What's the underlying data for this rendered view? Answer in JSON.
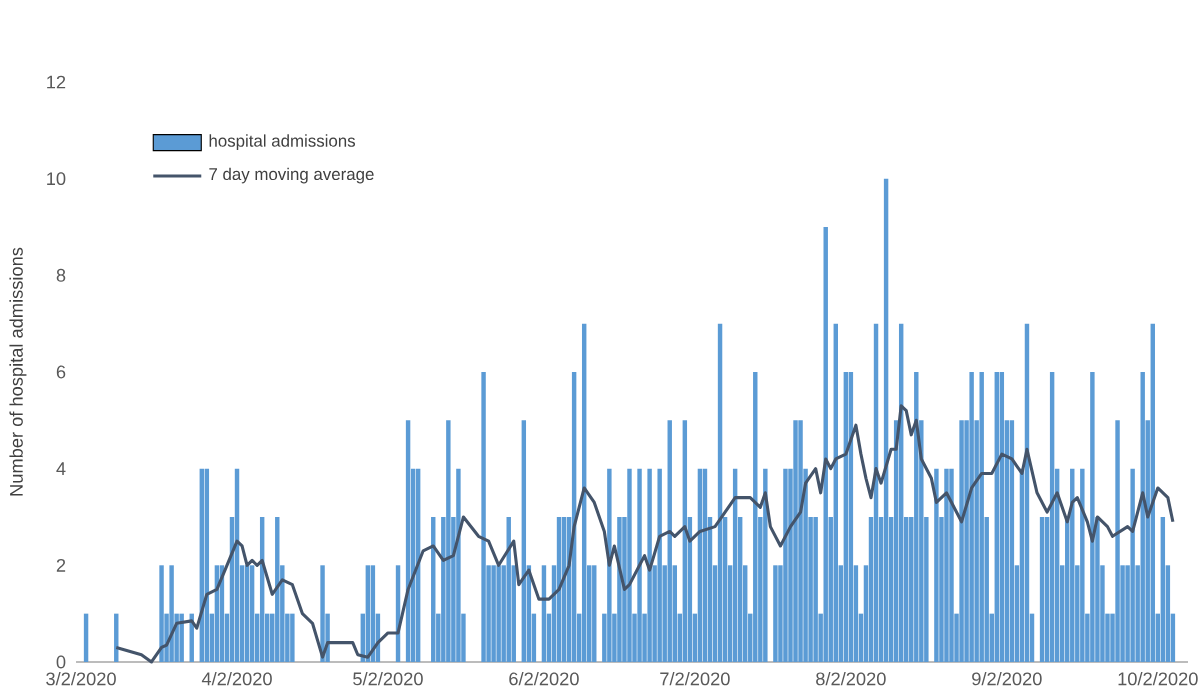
{
  "chart_data": {
    "type": "bar",
    "ylabel": "Number of hospital admissions",
    "xlim": [
      "2020-03-01",
      "2020-10-08"
    ],
    "xticks": [
      {
        "value": "2020-03-02",
        "label": "3/2/2020"
      },
      {
        "value": "2020-04-02",
        "label": "4/2/2020"
      },
      {
        "value": "2020-05-02",
        "label": "5/2/2020"
      },
      {
        "value": "2020-06-02",
        "label": "6/2/2020"
      },
      {
        "value": "2020-07-02",
        "label": "7/2/2020"
      },
      {
        "value": "2020-08-02",
        "label": "8/2/2020"
      },
      {
        "value": "2020-09-02",
        "label": "9/2/2020"
      },
      {
        "value": "2020-10-02",
        "label": "10/2/2020"
      }
    ],
    "ylim": [
      0,
      12
    ],
    "yticks": [
      0,
      2,
      4,
      6,
      8,
      10,
      12
    ],
    "legend": "top left",
    "series": [
      {
        "name": "hospital admissions",
        "color": "#5b9bd5",
        "x": [
          "2020-03-02",
          "2020-03-03",
          "2020-03-04",
          "2020-03-05",
          "2020-03-06",
          "2020-03-07",
          "2020-03-08",
          "2020-03-09",
          "2020-03-10",
          "2020-03-11",
          "2020-03-12",
          "2020-03-13",
          "2020-03-14",
          "2020-03-15",
          "2020-03-16",
          "2020-03-17",
          "2020-03-18",
          "2020-03-19",
          "2020-03-20",
          "2020-03-21",
          "2020-03-22",
          "2020-03-23",
          "2020-03-24",
          "2020-03-25",
          "2020-03-26",
          "2020-03-27",
          "2020-03-28",
          "2020-03-29",
          "2020-03-30",
          "2020-03-31",
          "2020-04-01",
          "2020-04-02",
          "2020-04-03",
          "2020-04-04",
          "2020-04-05",
          "2020-04-06",
          "2020-04-07",
          "2020-04-08",
          "2020-04-09",
          "2020-04-10",
          "2020-04-11",
          "2020-04-12",
          "2020-04-13",
          "2020-04-14",
          "2020-04-15",
          "2020-04-16",
          "2020-04-17",
          "2020-04-18",
          "2020-04-19",
          "2020-04-20",
          "2020-04-21",
          "2020-04-22",
          "2020-04-23",
          "2020-04-24",
          "2020-04-25",
          "2020-04-26",
          "2020-04-27",
          "2020-04-28",
          "2020-04-29",
          "2020-04-30",
          "2020-05-01",
          "2020-05-02",
          "2020-05-03",
          "2020-05-04",
          "2020-05-05",
          "2020-05-06",
          "2020-05-07",
          "2020-05-08",
          "2020-05-09",
          "2020-05-10",
          "2020-05-11",
          "2020-05-12",
          "2020-05-13",
          "2020-05-14",
          "2020-05-15",
          "2020-05-16",
          "2020-05-17",
          "2020-05-18",
          "2020-05-19",
          "2020-05-20",
          "2020-05-21",
          "2020-05-22",
          "2020-05-23",
          "2020-05-24",
          "2020-05-25",
          "2020-05-26",
          "2020-05-27",
          "2020-05-28",
          "2020-05-29",
          "2020-05-30",
          "2020-05-31",
          "2020-06-01",
          "2020-06-02",
          "2020-06-03",
          "2020-06-04",
          "2020-06-05",
          "2020-06-06",
          "2020-06-07",
          "2020-06-08",
          "2020-06-09",
          "2020-06-10",
          "2020-06-11",
          "2020-06-12",
          "2020-06-13",
          "2020-06-14",
          "2020-06-15",
          "2020-06-16",
          "2020-06-17",
          "2020-06-18",
          "2020-06-19",
          "2020-06-20",
          "2020-06-21",
          "2020-06-22",
          "2020-06-23",
          "2020-06-24",
          "2020-06-25",
          "2020-06-26",
          "2020-06-27",
          "2020-06-28",
          "2020-06-29",
          "2020-06-30",
          "2020-07-01",
          "2020-07-02",
          "2020-07-03",
          "2020-07-04",
          "2020-07-05",
          "2020-07-06",
          "2020-07-07",
          "2020-07-08",
          "2020-07-09",
          "2020-07-10",
          "2020-07-11",
          "2020-07-12",
          "2020-07-13",
          "2020-07-14",
          "2020-07-15",
          "2020-07-16",
          "2020-07-17",
          "2020-07-18",
          "2020-07-19",
          "2020-07-20",
          "2020-07-21",
          "2020-07-22",
          "2020-07-23",
          "2020-07-24",
          "2020-07-25",
          "2020-07-26",
          "2020-07-27",
          "2020-07-28",
          "2020-07-29",
          "2020-07-30",
          "2020-07-31",
          "2020-08-01",
          "2020-08-02",
          "2020-08-03",
          "2020-08-04",
          "2020-08-05",
          "2020-08-06",
          "2020-08-07",
          "2020-08-08",
          "2020-08-09",
          "2020-08-10",
          "2020-08-11",
          "2020-08-12",
          "2020-08-13",
          "2020-08-14",
          "2020-08-15",
          "2020-08-16",
          "2020-08-17",
          "2020-08-18",
          "2020-08-19",
          "2020-08-20",
          "2020-08-21",
          "2020-08-22",
          "2020-08-23",
          "2020-08-24",
          "2020-08-25",
          "2020-08-26",
          "2020-08-27",
          "2020-08-28",
          "2020-08-29",
          "2020-08-30",
          "2020-08-31",
          "2020-09-01",
          "2020-09-02",
          "2020-09-03",
          "2020-09-04",
          "2020-09-05",
          "2020-09-06",
          "2020-09-07",
          "2020-09-08",
          "2020-09-09",
          "2020-09-10",
          "2020-09-11",
          "2020-09-12",
          "2020-09-13",
          "2020-09-14",
          "2020-09-15",
          "2020-09-16",
          "2020-09-17",
          "2020-09-18",
          "2020-09-19",
          "2020-09-20",
          "2020-09-21",
          "2020-09-22",
          "2020-09-23",
          "2020-09-24",
          "2020-09-25",
          "2020-09-26",
          "2020-09-27",
          "2020-09-28",
          "2020-09-29",
          "2020-09-30",
          "2020-10-01",
          "2020-10-02",
          "2020-10-03",
          "2020-10-04",
          "2020-10-05"
        ],
        "values": [
          0,
          1,
          0,
          0,
          0,
          0,
          0,
          1,
          0,
          0,
          0,
          0,
          0,
          0,
          0,
          0,
          2,
          1,
          2,
          1,
          1,
          0,
          1,
          0,
          4,
          4,
          1,
          2,
          2,
          1,
          3,
          4,
          2,
          2,
          2,
          1,
          3,
          1,
          1,
          3,
          2,
          1,
          1,
          0,
          0,
          0,
          0,
          0,
          2,
          1,
          0,
          0,
          0,
          0,
          0,
          0,
          1,
          2,
          2,
          1,
          0,
          0,
          0,
          2,
          0,
          5,
          4,
          4,
          0,
          0,
          3,
          1,
          3,
          5,
          3,
          4,
          1,
          0,
          0,
          0,
          6,
          2,
          2,
          2,
          2,
          3,
          2,
          0,
          5,
          2,
          1,
          0,
          2,
          1,
          2,
          3,
          3,
          3,
          6,
          1,
          7,
          2,
          2,
          0,
          1,
          4,
          1,
          3,
          3,
          4,
          1,
          4,
          1,
          4,
          2,
          4,
          2,
          5,
          2,
          1,
          5,
          3,
          1,
          4,
          4,
          3,
          2,
          7,
          3,
          2,
          4,
          3,
          2,
          1,
          6,
          3,
          4,
          0,
          2,
          2,
          4,
          4,
          5,
          5,
          4,
          3,
          3,
          1,
          9,
          3,
          7,
          2,
          6,
          6,
          2,
          1,
          2,
          3,
          7,
          3,
          10,
          3,
          5,
          7,
          3,
          3,
          6,
          5,
          3,
          0,
          4,
          3,
          4,
          4,
          1,
          5,
          5,
          6,
          5,
          6,
          3,
          1,
          6,
          6,
          5,
          5,
          2,
          4,
          7,
          1,
          0,
          3,
          3,
          6,
          4,
          2,
          3,
          4,
          2,
          4,
          1,
          6,
          3,
          2,
          1,
          1,
          5,
          2,
          2,
          4,
          2,
          6,
          5,
          7,
          1,
          3,
          2,
          1
        ]
      },
      {
        "name": "7 day moving average",
        "type": "line",
        "color": "#44546a",
        "x": [
          "2020-03-09",
          "2020-03-14",
          "2020-03-16",
          "2020-03-18",
          "2020-03-19",
          "2020-03-21",
          "2020-03-24",
          "2020-03-25",
          "2020-03-27",
          "2020-03-29",
          "2020-03-31",
          "2020-04-02",
          "2020-04-03",
          "2020-04-04",
          "2020-04-05",
          "2020-04-06",
          "2020-04-07",
          "2020-04-09",
          "2020-04-11",
          "2020-04-13",
          "2020-04-15",
          "2020-04-17",
          "2020-04-19",
          "2020-04-20",
          "2020-04-25",
          "2020-04-26",
          "2020-04-28",
          "2020-04-30",
          "2020-05-02",
          "2020-05-04",
          "2020-05-06",
          "2020-05-09",
          "2020-05-11",
          "2020-05-13",
          "2020-05-15",
          "2020-05-17",
          "2020-05-20",
          "2020-05-22",
          "2020-05-24",
          "2020-05-27",
          "2020-05-28",
          "2020-05-30",
          "2020-06-01",
          "2020-06-03",
          "2020-06-05",
          "2020-06-07",
          "2020-06-08",
          "2020-06-10",
          "2020-06-12",
          "2020-06-14",
          "2020-06-15",
          "2020-06-16",
          "2020-06-18",
          "2020-06-19",
          "2020-06-21",
          "2020-06-22",
          "2020-06-23",
          "2020-06-25",
          "2020-06-27",
          "2020-06-28",
          "2020-06-30",
          "2020-07-01",
          "2020-07-03",
          "2020-07-06",
          "2020-07-08",
          "2020-07-10",
          "2020-07-13",
          "2020-07-15",
          "2020-07-16",
          "2020-07-17",
          "2020-07-19",
          "2020-07-21",
          "2020-07-23",
          "2020-07-24",
          "2020-07-26",
          "2020-07-27",
          "2020-07-28",
          "2020-07-29",
          "2020-07-30",
          "2020-08-01",
          "2020-08-03",
          "2020-08-04",
          "2020-08-05",
          "2020-08-06",
          "2020-08-07",
          "2020-08-08",
          "2020-08-10",
          "2020-08-11",
          "2020-08-12",
          "2020-08-13",
          "2020-08-14",
          "2020-08-15",
          "2020-08-16",
          "2020-08-18",
          "2020-08-19",
          "2020-08-21",
          "2020-08-24",
          "2020-08-26",
          "2020-08-28",
          "2020-08-30",
          "2020-09-01",
          "2020-09-03",
          "2020-09-05",
          "2020-09-06",
          "2020-09-08",
          "2020-09-10",
          "2020-09-12",
          "2020-09-14",
          "2020-09-15",
          "2020-09-16",
          "2020-09-18",
          "2020-09-19",
          "2020-09-20",
          "2020-09-22",
          "2020-09-23",
          "2020-09-26",
          "2020-09-27",
          "2020-09-29",
          "2020-09-30",
          "2020-10-02",
          "2020-10-04",
          "2020-10-05"
        ],
        "values": [
          0.3,
          0.15,
          0,
          0.3,
          0.35,
          0.8,
          0.85,
          0.7,
          1.4,
          1.5,
          2.0,
          2.5,
          2.4,
          2.0,
          2.1,
          2.0,
          2.1,
          1.4,
          1.7,
          1.6,
          1.0,
          0.8,
          0.1,
          0.4,
          0.4,
          0.15,
          0.1,
          0.4,
          0.6,
          0.6,
          1.5,
          2.3,
          2.4,
          2.1,
          2.2,
          3.0,
          2.6,
          2.5,
          2.0,
          2.5,
          1.6,
          1.9,
          1.3,
          1.3,
          1.5,
          2.0,
          2.8,
          3.6,
          3.3,
          2.7,
          2.0,
          2.4,
          1.5,
          1.6,
          2.0,
          2.2,
          1.9,
          2.6,
          2.7,
          2.6,
          2.8,
          2.5,
          2.7,
          2.8,
          3.1,
          3.4,
          3.4,
          3.2,
          3.5,
          2.8,
          2.4,
          2.8,
          3.1,
          3.7,
          4.0,
          3.5,
          4.2,
          4.0,
          4.2,
          4.3,
          4.9,
          4.3,
          3.8,
          3.4,
          4.0,
          3.7,
          4.4,
          4.4,
          5.3,
          5.2,
          4.7,
          5.0,
          4.2,
          3.8,
          3.3,
          3.5,
          2.9,
          3.6,
          3.9,
          3.9,
          4.3,
          4.2,
          3.9,
          4.4,
          3.5,
          3.1,
          3.5,
          2.9,
          3.3,
          3.4,
          2.9,
          2.5,
          3.0,
          2.8,
          2.6,
          2.8,
          2.7,
          3.5,
          3.0,
          3.6,
          3.4,
          2.9
        ]
      }
    ]
  }
}
